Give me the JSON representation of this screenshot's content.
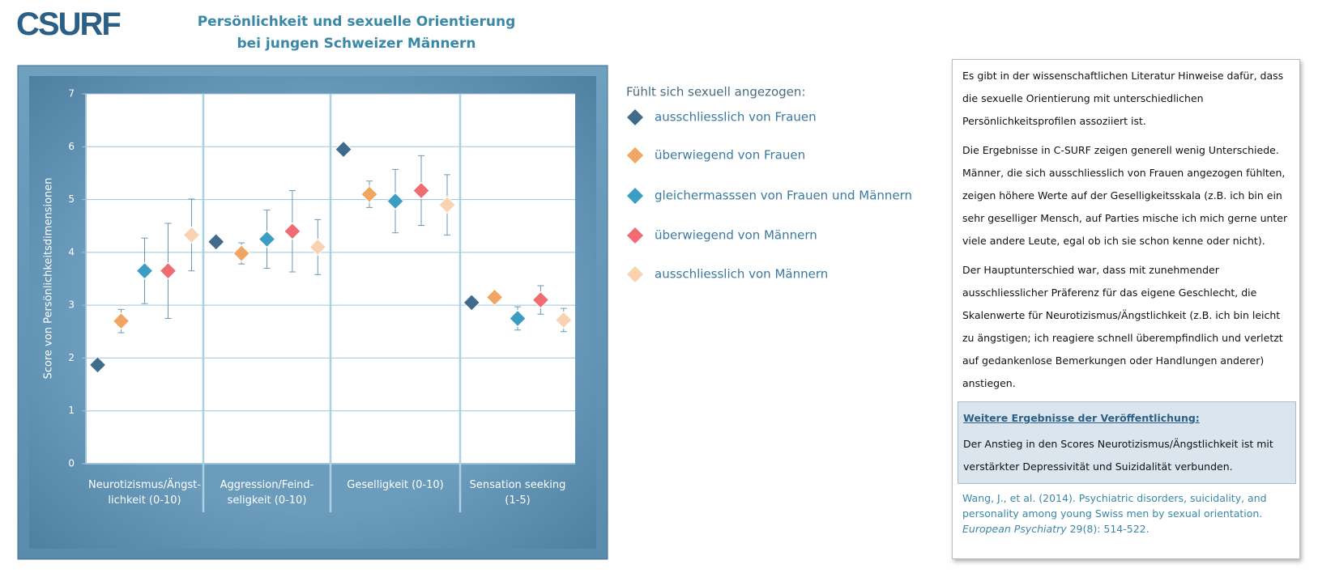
{
  "logo": "CSURF",
  "header": {
    "title": "Persönlichkeit und sexuelle Orientierung\nbei jungen Schweizer Männern"
  },
  "chart_data": {
    "type": "scatter",
    "y_label": "Score von Persönlichkeitsdimensionen",
    "legend_title": "Fühlt sich sexuell angezogen:",
    "categories": [
      "Neurotizismus/Ängst-\nlichkeit (0-10)",
      "Aggression/Feind-\nseligkeit (0-10)",
      "Geselligkeit  (0-10)",
      "Sensation seeking\n(1-5)"
    ],
    "ylim": [
      0,
      7
    ],
    "yticks": [
      0,
      1,
      2,
      3,
      4,
      5,
      6,
      7
    ],
    "grid": true,
    "series": [
      {
        "name": "ausschliesslich von Frauen",
        "color": "#3f6b8c",
        "values": [
          1.87,
          4.2,
          5.95,
          3.05
        ],
        "errors": [
          0.04,
          0.05,
          0.05,
          0.04
        ]
      },
      {
        "name": "überwiegend von Frauen",
        "color": "#f2a462",
        "values": [
          2.7,
          3.98,
          5.1,
          3.15
        ],
        "errors": [
          0.22,
          0.2,
          0.25,
          0.06
        ]
      },
      {
        "name": "gleichermasssen von Frauen und Männern",
        "color": "#3b9dc2",
        "values": [
          3.65,
          4.25,
          4.97,
          2.75
        ],
        "errors": [
          0.62,
          0.55,
          0.6,
          0.22
        ]
      },
      {
        "name": "überwiegend von Männern",
        "color": "#f06b72",
        "values": [
          3.65,
          4.4,
          5.17,
          3.1
        ],
        "errors": [
          0.9,
          0.77,
          0.66,
          0.27
        ]
      },
      {
        "name": "ausschliesslich von Männern",
        "color": "#f9d2b2",
        "values": [
          4.33,
          4.1,
          4.9,
          2.72
        ],
        "errors": [
          0.68,
          0.52,
          0.57,
          0.22
        ]
      }
    ]
  },
  "info": {
    "paragraphs": [
      "Es gibt in der wissenschaftlichen Literatur Hinweise dafür, dass die sexuelle Orientierung mit unterschiedlichen Persönlichkeitsprofilen assoziiert ist.",
      "Die Ergebnisse in C-SURF zeigen generell wenig Unterschiede. Männer, die sich ausschliesslich von Frauen angezogen fühlten, zeigen höhere Werte auf der Geselligkeitsskala  (z.B. ich bin ein sehr geselliger Mensch, auf Parties mische ich mich gerne unter viele andere Leute, egal ob ich sie schon kenne oder nicht).",
      "Der Hauptunterschied war, dass mit zunehmender ausschliesslicher Präferenz für das eigene Geschlecht, die Skalenwerte für Neurotizismus/Ängstlichkeit  (z.B. ich bin leicht zu ängstigen; ich reagiere schnell überempfindlich und verletzt auf gedankenlose Bemerkungen oder Handlungen anderer) anstiegen."
    ],
    "box_title": "Weitere Ergebnisse der Veröffentlichung:",
    "box_text": "Der Anstieg in den Scores Neurotizismus/Ängstlichkeit  ist mit verstärkter Depressivität und Suizidalität  verbunden.",
    "reference": "Wang, J., et al. (2014). Psychiatric disorders, suicidality, and personality among young Swiss men by sexual orientation.",
    "journal": "European Psychiatry",
    "citation": " 29(8): 514-522."
  }
}
